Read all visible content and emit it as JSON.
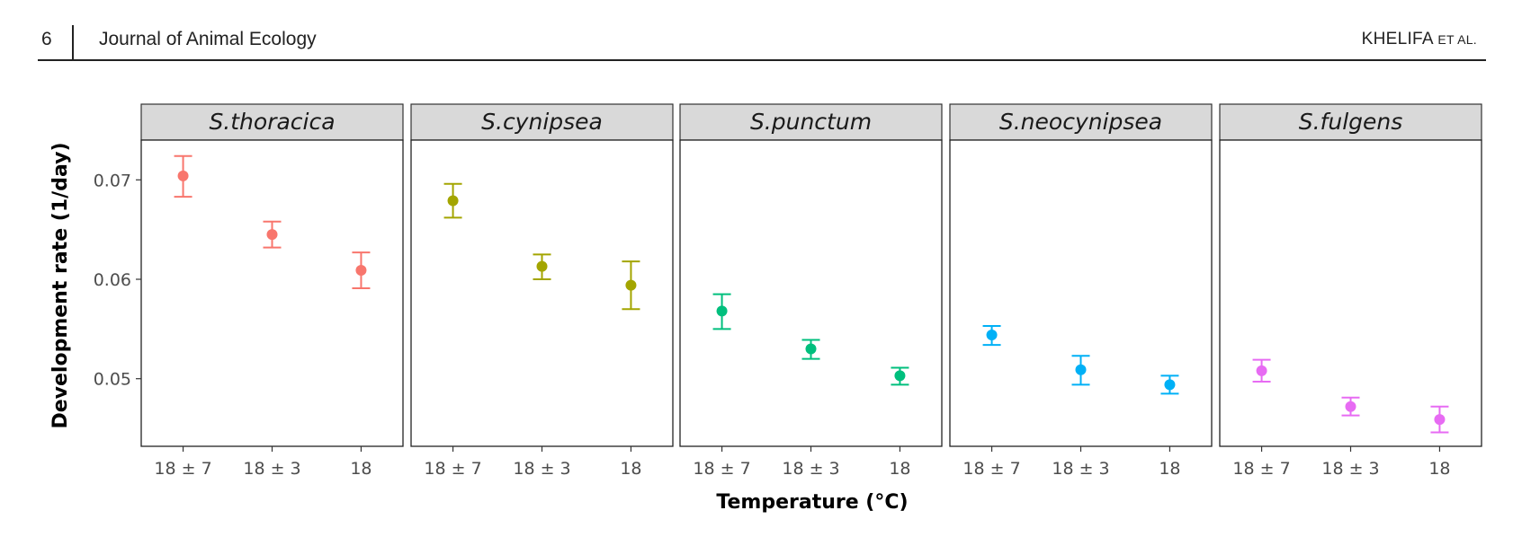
{
  "header": {
    "page_number": "6",
    "journal": "Journal of Animal Ecology",
    "authors_main": "KHELIFA",
    "authors_suffix": "ET AL."
  },
  "chart_data": {
    "type": "scatter",
    "title": "",
    "xlabel": "Temperature (°C)",
    "ylabel": "Development rate (1/day)",
    "ylim": [
      0.0432,
      0.074
    ],
    "yticks": [
      "0.05",
      "0.06",
      "0.07"
    ],
    "ytick_values": [
      0.05,
      0.06,
      0.07
    ],
    "categories": [
      "18 ± 7",
      "18 ± 3",
      "18"
    ],
    "grid": false,
    "legend": "none",
    "error_bars": true,
    "panels": [
      {
        "name": "S.thoracica",
        "color": "#F8766D",
        "mean": [
          0.0704,
          0.0645,
          0.0609
        ],
        "lower": [
          0.0683,
          0.0632,
          0.0591
        ],
        "upper": [
          0.0724,
          0.0658,
          0.0627
        ]
      },
      {
        "name": "S.cynipsea",
        "color": "#A3A500",
        "mean": [
          0.0679,
          0.0613,
          0.0594
        ],
        "lower": [
          0.0662,
          0.06,
          0.057
        ],
        "upper": [
          0.0696,
          0.0625,
          0.0618
        ]
      },
      {
        "name": "S.punctum",
        "color": "#00BF7D",
        "mean": [
          0.0568,
          0.053,
          0.0503
        ],
        "lower": [
          0.055,
          0.052,
          0.0494
        ],
        "upper": [
          0.0585,
          0.0539,
          0.0511
        ]
      },
      {
        "name": "S.neocynipsea",
        "color": "#00B0F6",
        "mean": [
          0.0544,
          0.0509,
          0.0494
        ],
        "lower": [
          0.0534,
          0.0494,
          0.0485
        ],
        "upper": [
          0.0553,
          0.0523,
          0.0503
        ]
      },
      {
        "name": "S.fulgens",
        "color": "#E76BF3",
        "mean": [
          0.0508,
          0.0472,
          0.0459
        ],
        "lower": [
          0.0497,
          0.0463,
          0.0446
        ],
        "upper": [
          0.0519,
          0.0481,
          0.0472
        ]
      }
    ]
  }
}
